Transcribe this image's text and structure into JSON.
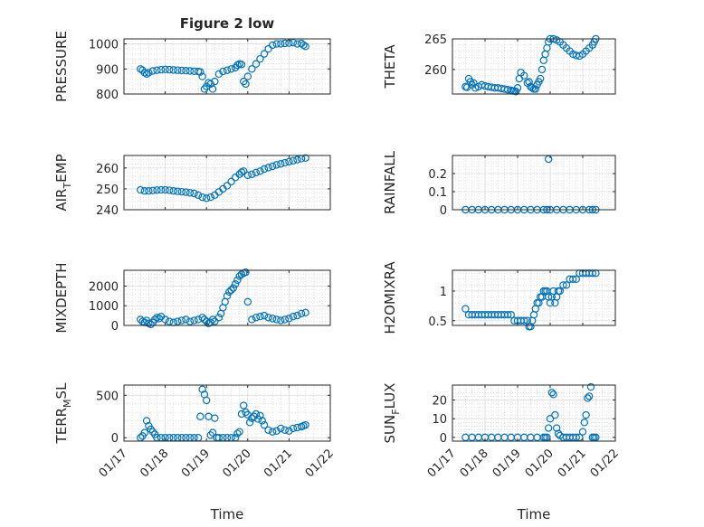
{
  "figure_title": "Figure 2 low",
  "marker_color": "#0072BD",
  "x_tick_labels": [
    "01/17",
    "01/18",
    "01/19",
    "01/20",
    "01/21",
    "01/22"
  ],
  "x_axis_label": "Time",
  "chart_data": [
    {
      "type": "scatter",
      "title": "Figure 2 low",
      "ylabel": "PRESSURE",
      "xlabel": "",
      "ylim": [
        800,
        1020
      ],
      "yticks": [
        800,
        900,
        1000
      ],
      "grid": true,
      "x": [
        17.4,
        17.45,
        17.5,
        17.55,
        17.6,
        17.7,
        17.8,
        17.9,
        18.0,
        18.1,
        18.2,
        18.3,
        18.4,
        18.5,
        18.6,
        18.7,
        18.8,
        18.85,
        18.9,
        18.95,
        19.0,
        19.05,
        19.1,
        19.15,
        19.2,
        19.3,
        19.4,
        19.5,
        19.6,
        19.7,
        19.75,
        19.8,
        19.85,
        19.9,
        19.95,
        20.0,
        20.1,
        20.2,
        20.3,
        20.4,
        20.5,
        20.6,
        20.7,
        20.8,
        20.9,
        21.0,
        21.1,
        21.2,
        21.3,
        21.35,
        21.4
      ],
      "y": [
        900,
        895,
        885,
        880,
        885,
        892,
        895,
        897,
        898,
        897,
        896,
        895,
        894,
        893,
        892,
        891,
        890,
        888,
        870,
        820,
        830,
        845,
        840,
        820,
        850,
        880,
        890,
        895,
        900,
        905,
        915,
        920,
        918,
        850,
        840,
        870,
        900,
        920,
        940,
        960,
        980,
        995,
        1000,
        1000,
        1002,
        1003,
        1005,
        1000,
        1002,
        995,
        990
      ]
    },
    {
      "type": "scatter",
      "title": "",
      "ylabel": "THETA",
      "xlabel": "",
      "ylim": [
        256,
        265
      ],
      "yticks": [
        260,
        265
      ],
      "grid": true,
      "x": [
        17.4,
        17.45,
        17.5,
        17.55,
        17.6,
        17.65,
        17.7,
        17.8,
        17.9,
        18.0,
        18.1,
        18.2,
        18.3,
        18.4,
        18.5,
        18.6,
        18.7,
        18.8,
        18.85,
        18.9,
        18.95,
        19.0,
        19.05,
        19.1,
        19.2,
        19.3,
        19.35,
        19.4,
        19.45,
        19.5,
        19.55,
        19.6,
        19.65,
        19.7,
        19.75,
        19.8,
        19.85,
        19.9,
        19.95,
        20.0,
        20.1,
        20.2,
        20.3,
        20.4,
        20.5,
        20.6,
        20.7,
        20.8,
        20.9,
        21.0,
        21.1,
        21.2,
        21.3,
        21.35,
        21.4
      ],
      "y": [
        257.2,
        257.1,
        258.5,
        258.0,
        257.5,
        257.8,
        257.0,
        257.2,
        257.5,
        257.3,
        257.2,
        257.1,
        257.0,
        257.0,
        256.9,
        256.8,
        256.7,
        256.6,
        256.5,
        256.5,
        256.4,
        257.0,
        258.5,
        259.5,
        259.0,
        257.8,
        258.0,
        257.2,
        257.0,
        256.8,
        256.8,
        257.5,
        258.0,
        258.5,
        260.0,
        261.5,
        262.5,
        263.5,
        264.5,
        265.0,
        265.0,
        264.8,
        264.5,
        264.0,
        263.5,
        263.0,
        262.5,
        262.3,
        262.2,
        262.5,
        263.0,
        263.5,
        264.0,
        264.5,
        265.0
      ]
    },
    {
      "type": "scatter",
      "title": "",
      "ylabel": "AIR_TEMP",
      "xlabel": "",
      "ylim": [
        240,
        266
      ],
      "yticks": [
        240,
        250,
        260
      ],
      "grid": true,
      "x": [
        17.4,
        17.5,
        17.6,
        17.7,
        17.8,
        17.9,
        18.0,
        18.1,
        18.2,
        18.3,
        18.4,
        18.5,
        18.6,
        18.7,
        18.8,
        18.9,
        19.0,
        19.1,
        19.2,
        19.3,
        19.4,
        19.5,
        19.6,
        19.7,
        19.8,
        19.85,
        19.9,
        20.0,
        20.1,
        20.2,
        20.3,
        20.4,
        20.5,
        20.6,
        20.7,
        20.8,
        20.9,
        21.0,
        21.1,
        21.2,
        21.3,
        21.4
      ],
      "y": [
        249.5,
        249.0,
        249.0,
        249.2,
        249.4,
        249.5,
        249.5,
        249.3,
        249.0,
        248.8,
        248.6,
        248.4,
        248.1,
        247.8,
        247.0,
        246.0,
        245.5,
        246.0,
        247.0,
        248.5,
        250.0,
        251.5,
        253.5,
        255.5,
        257.0,
        258.0,
        258.5,
        256.5,
        257.0,
        257.8,
        258.5,
        259.5,
        260.2,
        260.8,
        261.5,
        262.0,
        262.5,
        263.0,
        263.5,
        264.0,
        264.5,
        264.8
      ]
    },
    {
      "type": "scatter",
      "title": "",
      "ylabel": "RAINFALL",
      "xlabel": "",
      "ylim": [
        0,
        0.3
      ],
      "yticks": [
        0,
        0.1,
        0.2
      ],
      "grid": true,
      "x": [
        17.4,
        17.6,
        17.8,
        18.0,
        18.2,
        18.4,
        18.6,
        18.8,
        19.0,
        19.2,
        19.4,
        19.6,
        19.8,
        19.9,
        19.95,
        20.0,
        20.2,
        20.4,
        20.6,
        20.8,
        21.0,
        21.2,
        21.3,
        21.4
      ],
      "y": [
        0,
        0,
        0,
        0,
        0,
        0,
        0,
        0,
        0,
        0,
        0,
        0,
        0,
        0,
        0.28,
        0,
        0,
        0,
        0,
        0,
        0,
        0,
        0,
        0
      ]
    },
    {
      "type": "scatter",
      "title": "",
      "ylabel": "MIXDEPTH",
      "xlabel": "",
      "ylim": [
        0,
        2800
      ],
      "yticks": [
        0,
        1000,
        2000
      ],
      "grid": true,
      "x": [
        17.4,
        17.45,
        17.5,
        17.55,
        17.6,
        17.65,
        17.7,
        17.75,
        17.8,
        17.85,
        17.9,
        18.0,
        18.1,
        18.2,
        18.3,
        18.4,
        18.5,
        18.6,
        18.7,
        18.8,
        18.9,
        18.95,
        19.0,
        19.05,
        19.1,
        19.15,
        19.2,
        19.3,
        19.35,
        19.4,
        19.45,
        19.5,
        19.55,
        19.6,
        19.65,
        19.7,
        19.75,
        19.8,
        19.85,
        19.9,
        19.95,
        20.0,
        20.1,
        20.2,
        20.3,
        20.4,
        20.5,
        20.6,
        20.7,
        20.8,
        20.9,
        21.0,
        21.1,
        21.2,
        21.3,
        21.4
      ],
      "y": [
        300,
        200,
        150,
        250,
        100,
        50,
        150,
        300,
        400,
        350,
        450,
        300,
        200,
        150,
        200,
        250,
        300,
        200,
        250,
        300,
        400,
        300,
        200,
        100,
        150,
        300,
        200,
        400,
        600,
        900,
        1200,
        1500,
        1700,
        1800,
        1900,
        2100,
        2300,
        2500,
        2600,
        2650,
        2700,
        1200,
        300,
        400,
        450,
        500,
        400,
        350,
        300,
        250,
        300,
        350,
        450,
        500,
        600,
        650
      ]
    },
    {
      "type": "scatter",
      "title": "",
      "ylabel": "H2OMIXRA",
      "xlabel": "",
      "ylim": [
        0.42,
        1.35
      ],
      "yticks": [
        0.5,
        1
      ],
      "grid": true,
      "x": [
        17.4,
        17.5,
        17.6,
        17.7,
        17.8,
        17.9,
        18.0,
        18.1,
        18.2,
        18.3,
        18.4,
        18.5,
        18.6,
        18.7,
        18.8,
        18.9,
        19.0,
        19.1,
        19.2,
        19.3,
        19.35,
        19.4,
        19.45,
        19.5,
        19.55,
        19.6,
        19.65,
        19.7,
        19.75,
        19.8,
        19.85,
        19.9,
        19.95,
        20.0,
        20.05,
        20.1,
        20.15,
        20.2,
        20.25,
        20.3,
        20.4,
        20.5,
        20.6,
        20.7,
        20.8,
        20.9,
        21.0,
        21.1,
        21.2,
        21.3,
        21.4
      ],
      "y": [
        0.7,
        0.6,
        0.6,
        0.6,
        0.6,
        0.6,
        0.6,
        0.6,
        0.6,
        0.6,
        0.6,
        0.6,
        0.6,
        0.6,
        0.6,
        0.5,
        0.5,
        0.5,
        0.5,
        0.5,
        0.4,
        0.4,
        0.5,
        0.6,
        0.7,
        0.8,
        0.8,
        0.9,
        0.9,
        1.0,
        1.0,
        1.0,
        0.9,
        0.8,
        0.9,
        1.0,
        0.8,
        0.9,
        1.0,
        1.0,
        1.1,
        1.1,
        1.2,
        1.2,
        1.2,
        1.3,
        1.3,
        1.3,
        1.3,
        1.3,
        1.3
      ]
    },
    {
      "type": "scatter",
      "title": "",
      "ylabel": "TERR_MSL",
      "xlabel": "Time",
      "ylim": [
        -40,
        620
      ],
      "yticks": [
        0,
        500
      ],
      "grid": true,
      "x": [
        17.4,
        17.45,
        17.5,
        17.55,
        17.6,
        17.65,
        17.7,
        17.75,
        17.8,
        17.9,
        18.0,
        18.1,
        18.2,
        18.3,
        18.4,
        18.5,
        18.6,
        18.7,
        18.8,
        18.85,
        18.9,
        18.95,
        19.0,
        19.05,
        19.1,
        19.15,
        19.2,
        19.25,
        19.3,
        19.4,
        19.5,
        19.6,
        19.7,
        19.75,
        19.8,
        19.85,
        19.9,
        19.95,
        20.0,
        20.05,
        20.1,
        20.15,
        20.2,
        20.25,
        20.3,
        20.35,
        20.4,
        20.5,
        20.6,
        20.7,
        20.8,
        20.9,
        21.0,
        21.1,
        21.2,
        21.3,
        21.35,
        21.4
      ],
      "y": [
        0,
        20,
        60,
        200,
        140,
        100,
        70,
        40,
        0,
        0,
        0,
        0,
        0,
        0,
        0,
        0,
        0,
        0,
        0,
        250,
        570,
        510,
        440,
        250,
        30,
        60,
        230,
        0,
        0,
        0,
        0,
        0,
        0,
        50,
        70,
        280,
        380,
        300,
        270,
        180,
        230,
        250,
        280,
        220,
        260,
        200,
        150,
        90,
        70,
        80,
        110,
        90,
        80,
        110,
        120,
        130,
        140,
        150
      ]
    },
    {
      "type": "scatter",
      "title": "",
      "ylabel": "SUN_FLUX",
      "xlabel": "Time",
      "ylim": [
        -2,
        28
      ],
      "yticks": [
        0,
        10,
        20
      ],
      "grid": true,
      "x": [
        17.4,
        17.6,
        17.8,
        18.0,
        18.2,
        18.4,
        18.6,
        18.8,
        19.0,
        19.2,
        19.4,
        19.6,
        19.8,
        19.85,
        19.9,
        19.95,
        20.0,
        20.05,
        20.1,
        20.15,
        20.2,
        20.25,
        20.3,
        20.4,
        20.5,
        20.6,
        20.7,
        20.8,
        20.9,
        21.0,
        21.05,
        21.1,
        21.15,
        21.2,
        21.25,
        21.3,
        21.35,
        21.4
      ],
      "y": [
        0,
        0,
        0,
        0,
        0,
        0,
        0,
        0,
        0,
        0,
        0,
        0,
        0,
        0,
        0,
        5,
        10,
        24,
        23,
        12,
        5,
        2,
        1,
        0,
        0,
        0,
        0,
        0,
        0,
        3,
        8,
        12,
        21,
        22,
        27,
        0,
        0,
        0
      ]
    }
  ]
}
